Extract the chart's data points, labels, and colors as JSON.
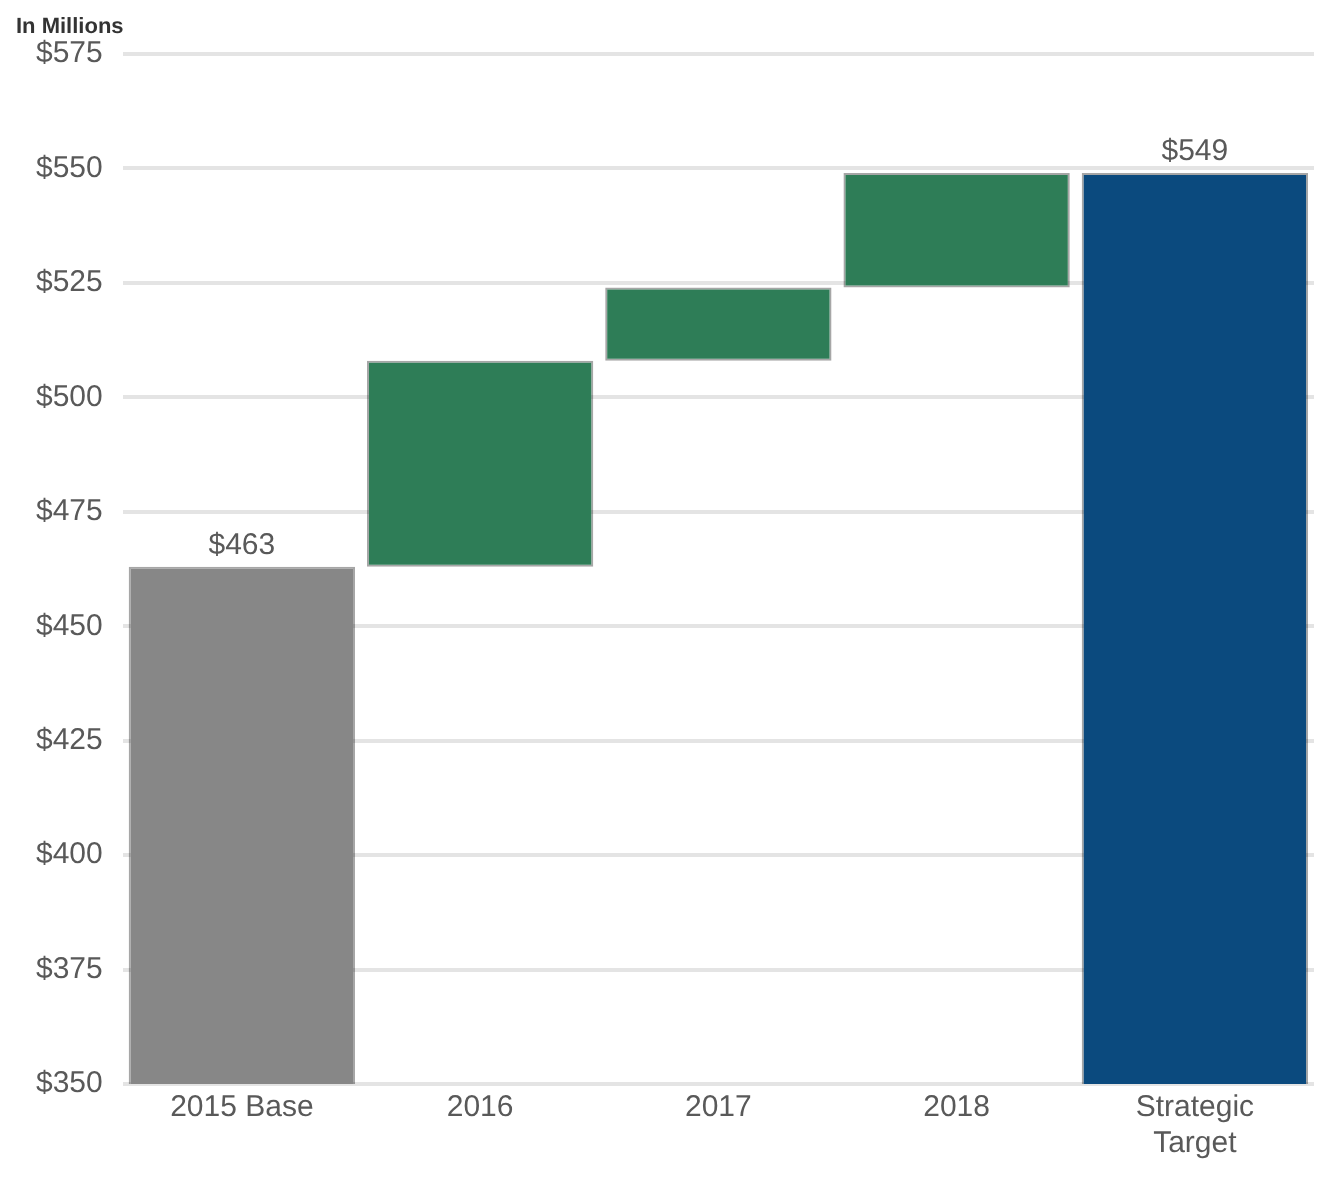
{
  "chart_data": {
    "type": "bar",
    "ylabel": "In Millions",
    "categories": [
      "2015 Base",
      "2016",
      "2017",
      "2018",
      "Strategic Target"
    ],
    "values": [
      463,
      45,
      16,
      25,
      549
    ],
    "base": [
      null,
      463,
      508,
      524,
      null
    ],
    "colors": [
      "#878787",
      "#2e7d57",
      "#2e7d57",
      "#2e7d57",
      "#0b4a7e"
    ],
    "value_labels": [
      "$463",
      null,
      null,
      null,
      "$549"
    ],
    "ylim": [
      350,
      575
    ],
    "yticks": [
      {
        "value": 350,
        "label": "$350"
      },
      {
        "value": 375,
        "label": "$375"
      },
      {
        "value": 400,
        "label": "$400"
      },
      {
        "value": 425,
        "label": "$425"
      },
      {
        "value": 450,
        "label": "$450"
      },
      {
        "value": 475,
        "label": "$475"
      },
      {
        "value": 500,
        "label": "$500"
      },
      {
        "value": 525,
        "label": "$525"
      },
      {
        "value": 550,
        "label": "$550"
      },
      {
        "value": 575,
        "label": "$575"
      }
    ],
    "grid": "y",
    "legend": false
  }
}
